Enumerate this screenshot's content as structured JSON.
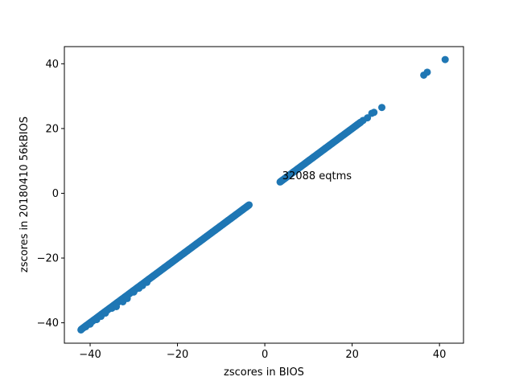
{
  "chart_data": {
    "type": "scatter",
    "title": "",
    "xlabel": "zscores in BIOS",
    "ylabel": "zscores in 20180410 56kBIOS",
    "xlim": [
      -45.9,
      45.5
    ],
    "ylim": [
      -46.3,
      45.3
    ],
    "xticks": [
      -40,
      -20,
      0,
      20,
      40
    ],
    "yticks": [
      -40,
      -20,
      0,
      20,
      40
    ],
    "xtick_labels": [
      "−40",
      "−20",
      "0",
      "20",
      "40"
    ],
    "ytick_labels": [
      "−40",
      "−20",
      "0",
      "20",
      "40"
    ],
    "grid": false,
    "marker_color": "#1f77b4",
    "annotation": {
      "text": "32088 eqtms",
      "x": 4.0,
      "y": 4.3
    },
    "series": [
      {
        "segments": [
          {
            "x_from": -42.0,
            "x_to": -3.5,
            "slope": 1.0,
            "intercept": 0.0
          },
          {
            "x_from": 3.5,
            "x_to": 22.0,
            "slope": 1.0,
            "intercept": 0.0
          }
        ],
        "points": [
          [
            -42.1,
            -42.2
          ],
          [
            -41.0,
            -41.2
          ],
          [
            -40.0,
            -40.4
          ],
          [
            -38.5,
            -39.0
          ],
          [
            -37.5,
            -38.0
          ],
          [
            -36.5,
            -37.0
          ],
          [
            -35.0,
            -35.5
          ],
          [
            -34.0,
            -35.0
          ],
          [
            -32.5,
            -33.5
          ],
          [
            -31.5,
            -32.5
          ],
          [
            -30.0,
            -30.5
          ],
          [
            -28.8,
            -29.3
          ],
          [
            -28.0,
            -28.5
          ],
          [
            -27.0,
            -27.5
          ],
          [
            22.5,
            22.5
          ],
          [
            23.5,
            23.3
          ],
          [
            24.5,
            24.7
          ],
          [
            25.0,
            25.0
          ],
          [
            26.8,
            26.5
          ],
          [
            36.4,
            36.5
          ],
          [
            37.2,
            37.4
          ],
          [
            41.3,
            41.3
          ]
        ]
      }
    ]
  }
}
